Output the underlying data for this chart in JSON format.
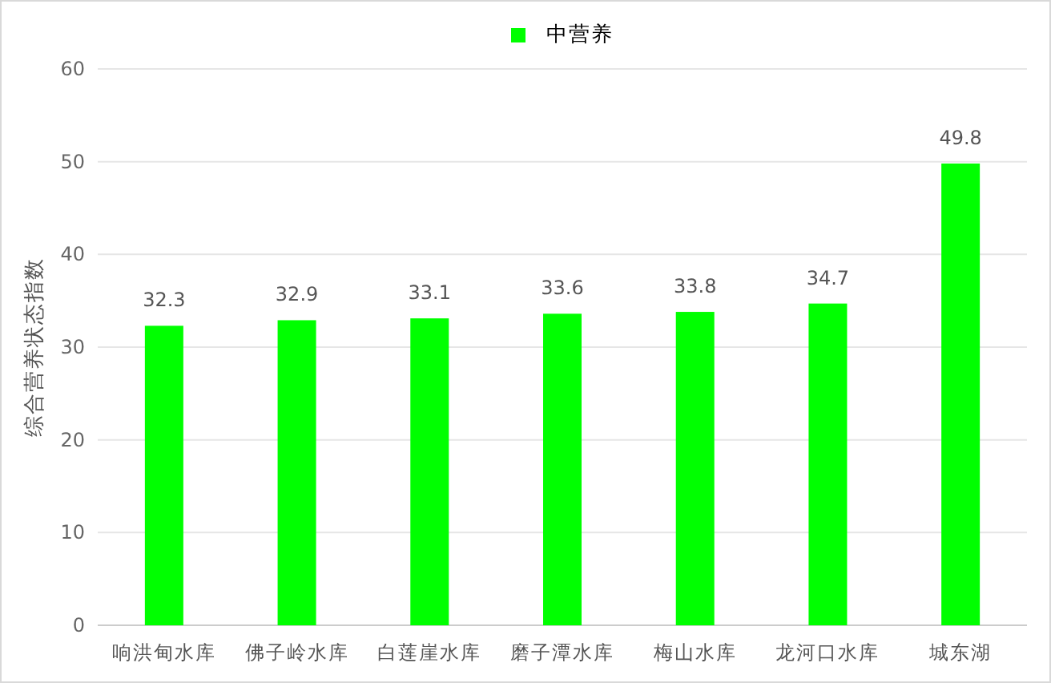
{
  "chart_data": {
    "type": "bar",
    "ylabel": "综合营养状态指数",
    "categories": [
      "响洪甸水库",
      "佛子岭水库",
      "白莲崖水库",
      "磨子潭水库",
      "梅山水库",
      "龙河口水库",
      "城东湖"
    ],
    "series": [
      {
        "name": "中营养",
        "color": "#00ff00",
        "values": [
          32.3,
          32.9,
          33.1,
          33.6,
          33.8,
          34.7,
          49.8
        ]
      }
    ],
    "ylim": [
      0,
      60
    ],
    "yticks": [
      0,
      10,
      20,
      30,
      40,
      50,
      60
    ],
    "grid": "y",
    "legend": "top",
    "data_labels": true
  }
}
